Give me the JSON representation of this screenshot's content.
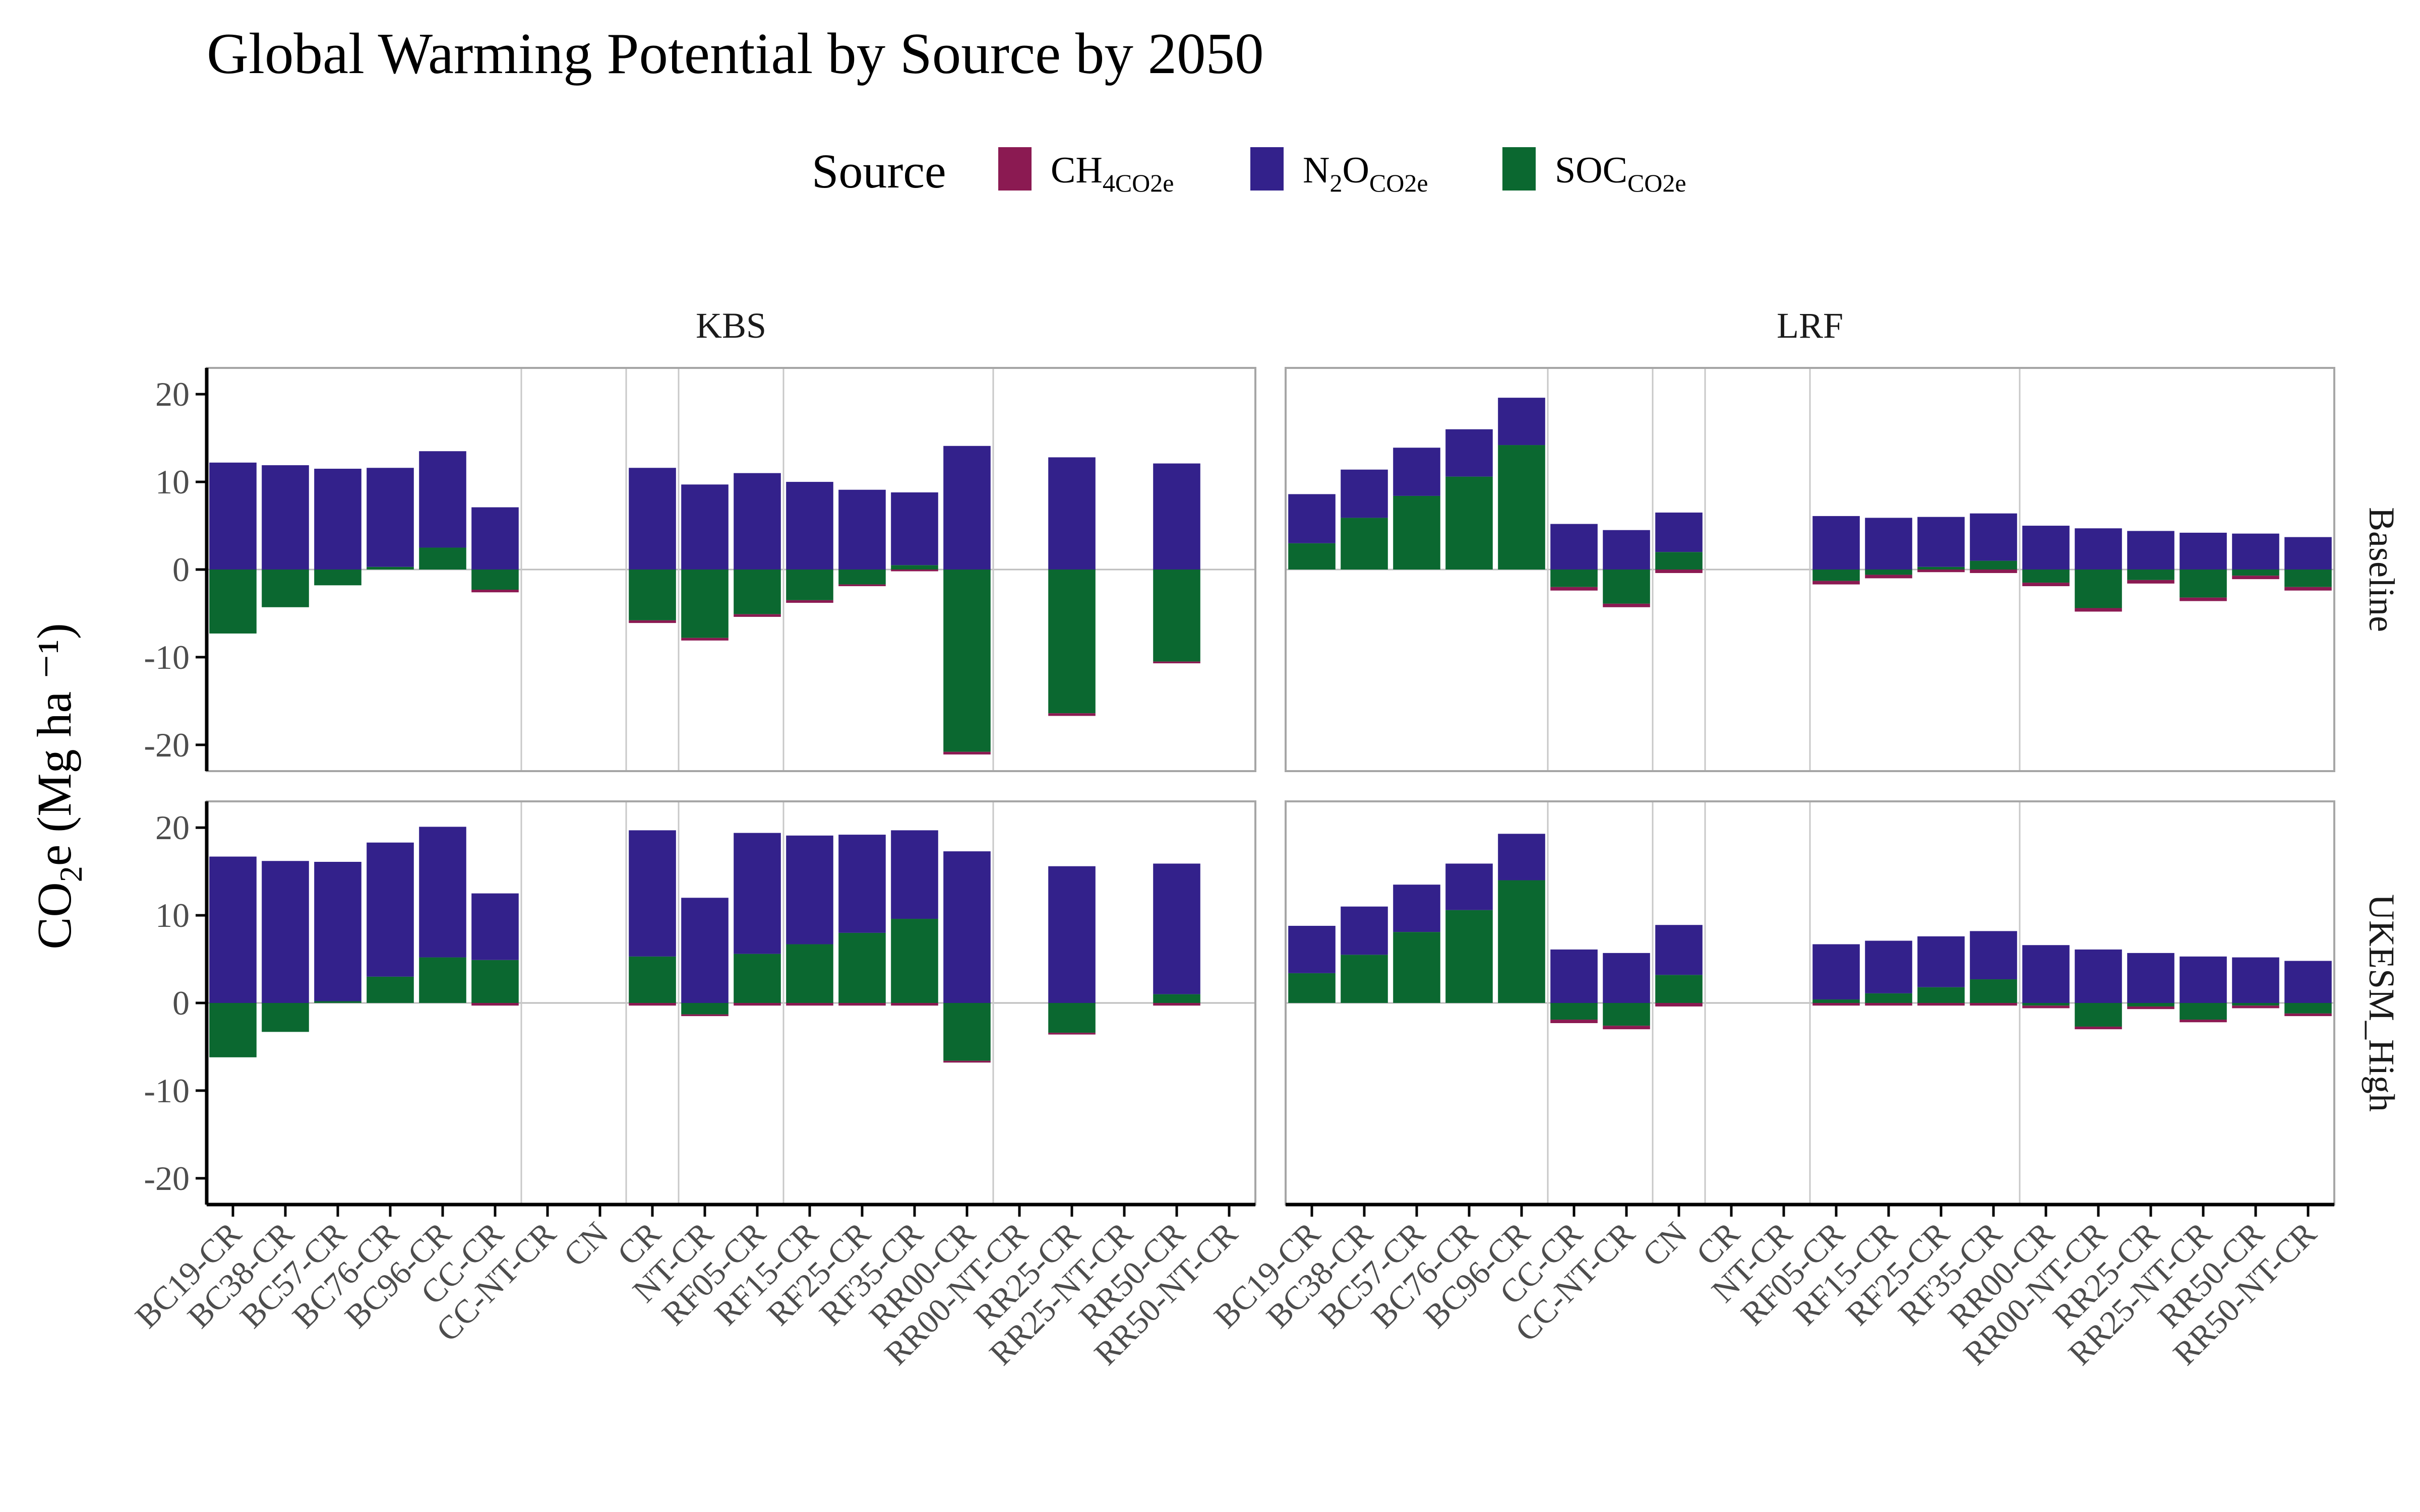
{
  "chart_data": {
    "type": "bar",
    "stacked": true,
    "title": "Global Warming Potential by Source by 2050",
    "ylabel": "CO2e (Mg ha ⁻¹)",
    "ylim": [
      -23,
      23
    ],
    "yticks": [
      -20,
      -10,
      0,
      10,
      20
    ],
    "grid": true,
    "legend": {
      "title": "Source",
      "position": "top",
      "items": [
        {
          "key": "CH4",
          "base": "CH",
          "sub": "4CO2e",
          "color": "#8B1A52"
        },
        {
          "key": "N2O",
          "base": "N",
          "mid": "2",
          "base2": "O",
          "sub": "CO2e",
          "color": "#33218B"
        },
        {
          "key": "SOC",
          "base": "SOC",
          "sub": "CO2e",
          "color": "#0B6830"
        }
      ]
    },
    "columns": [
      "KBS",
      "LRF"
    ],
    "rows": [
      "Baseline",
      "UKESM_High"
    ],
    "panels": [
      {
        "column": "KBS",
        "categories": [
          "BC19-CR",
          "BC38-CR",
          "BC57-CR",
          "BC76-CR",
          "BC96-CR",
          "CC-CR",
          "CC-NT-CR",
          "CN",
          "CR",
          "NT-CR",
          "RF05-CR",
          "RF15-CR",
          "RF25-CR",
          "RF35-CR",
          "RR00-CR",
          "RR00-NT-CR",
          "RR25-CR",
          "RR25-NT-CR",
          "RR50-CR",
          "RR50-NT-CR"
        ],
        "vlines_after": [
          5,
          7,
          8,
          10,
          14
        ],
        "rows": {
          "Baseline": {
            "SOC": [
              -7.3,
              -4.3,
              -1.8,
              0.3,
              2.5,
              -2.3,
              null,
              null,
              -5.8,
              -7.8,
              -5.1,
              -3.5,
              -1.7,
              0.5,
              -20.8,
              null,
              -16.4,
              null,
              -10.5,
              null
            ],
            "N2O": [
              12.2,
              11.9,
              11.5,
              11.3,
              11.0,
              7.1,
              null,
              null,
              11.6,
              9.7,
              11.0,
              10.0,
              9.1,
              8.3,
              14.1,
              null,
              12.8,
              null,
              12.1,
              null
            ],
            "CH4": [
              0,
              0,
              0,
              0,
              0,
              -0.3,
              null,
              null,
              -0.3,
              -0.3,
              -0.3,
              -0.3,
              -0.2,
              -0.2,
              -0.3,
              null,
              -0.3,
              null,
              -0.2,
              null
            ]
          },
          "UKESM_High": {
            "SOC": [
              -6.2,
              -3.3,
              0.2,
              3.0,
              5.2,
              4.9,
              null,
              null,
              5.3,
              -1.3,
              5.6,
              6.7,
              8.0,
              9.6,
              -6.6,
              null,
              -3.4,
              null,
              1.0,
              null
            ],
            "N2O": [
              16.7,
              16.2,
              15.9,
              15.3,
              14.9,
              7.6,
              null,
              null,
              14.4,
              12.0,
              13.8,
              12.4,
              11.2,
              10.1,
              17.3,
              null,
              15.6,
              null,
              14.9,
              null
            ],
            "CH4": [
              0,
              0,
              0,
              0,
              0,
              -0.3,
              null,
              null,
              -0.3,
              -0.2,
              -0.3,
              -0.3,
              -0.3,
              -0.3,
              -0.2,
              null,
              -0.2,
              null,
              -0.3,
              null
            ]
          }
        }
      },
      {
        "column": "LRF",
        "categories": [
          "BC19-CR",
          "BC38-CR",
          "BC57-CR",
          "BC76-CR",
          "BC96-CR",
          "CC-CR",
          "CC-NT-CR",
          "CN",
          "CR",
          "NT-CR",
          "RF05-CR",
          "RF15-CR",
          "RF25-CR",
          "RF35-CR",
          "RR00-CR",
          "RR00-NT-CR",
          "RR25-CR",
          "RR25-NT-CR",
          "RR50-CR",
          "RR50-NT-CR"
        ],
        "vlines_after": [
          4,
          6,
          7,
          9,
          13
        ],
        "rows": {
          "Baseline": {
            "SOC": [
              3.0,
              5.9,
              8.4,
              10.6,
              14.2,
              -2.0,
              -3.9,
              2.0,
              null,
              null,
              -1.3,
              -0.6,
              0.3,
              1.0,
              -1.5,
              -4.4,
              -1.2,
              -3.2,
              -0.7,
              -2.0
            ],
            "N2O": [
              5.6,
              5.5,
              5.5,
              5.4,
              5.4,
              5.2,
              4.5,
              4.5,
              null,
              null,
              6.1,
              5.9,
              5.7,
              5.4,
              5.0,
              4.7,
              4.4,
              4.2,
              4.1,
              3.7
            ],
            "CH4": [
              0,
              0,
              0,
              0,
              0,
              -0.4,
              -0.4,
              -0.4,
              null,
              null,
              -0.4,
              -0.4,
              -0.3,
              -0.4,
              -0.4,
              -0.4,
              -0.4,
              -0.4,
              -0.4,
              -0.4
            ]
          },
          "UKESM_High": {
            "SOC": [
              3.4,
              5.5,
              8.1,
              10.6,
              14.0,
              -1.9,
              -2.6,
              3.2,
              null,
              null,
              0.4,
              1.1,
              1.8,
              2.7,
              -0.3,
              -2.7,
              -0.4,
              -1.9,
              -0.3,
              -1.2
            ],
            "N2O": [
              5.4,
              5.5,
              5.4,
              5.3,
              5.3,
              6.1,
              5.7,
              5.7,
              null,
              null,
              6.3,
              6.0,
              5.8,
              5.5,
              6.6,
              6.1,
              5.7,
              5.3,
              5.2,
              4.8
            ],
            "CH4": [
              0,
              0,
              0,
              0,
              0,
              -0.4,
              -0.4,
              -0.4,
              null,
              null,
              -0.3,
              -0.3,
              -0.3,
              -0.3,
              -0.3,
              -0.3,
              -0.3,
              -0.3,
              -0.3,
              -0.3
            ]
          }
        }
      }
    ]
  }
}
